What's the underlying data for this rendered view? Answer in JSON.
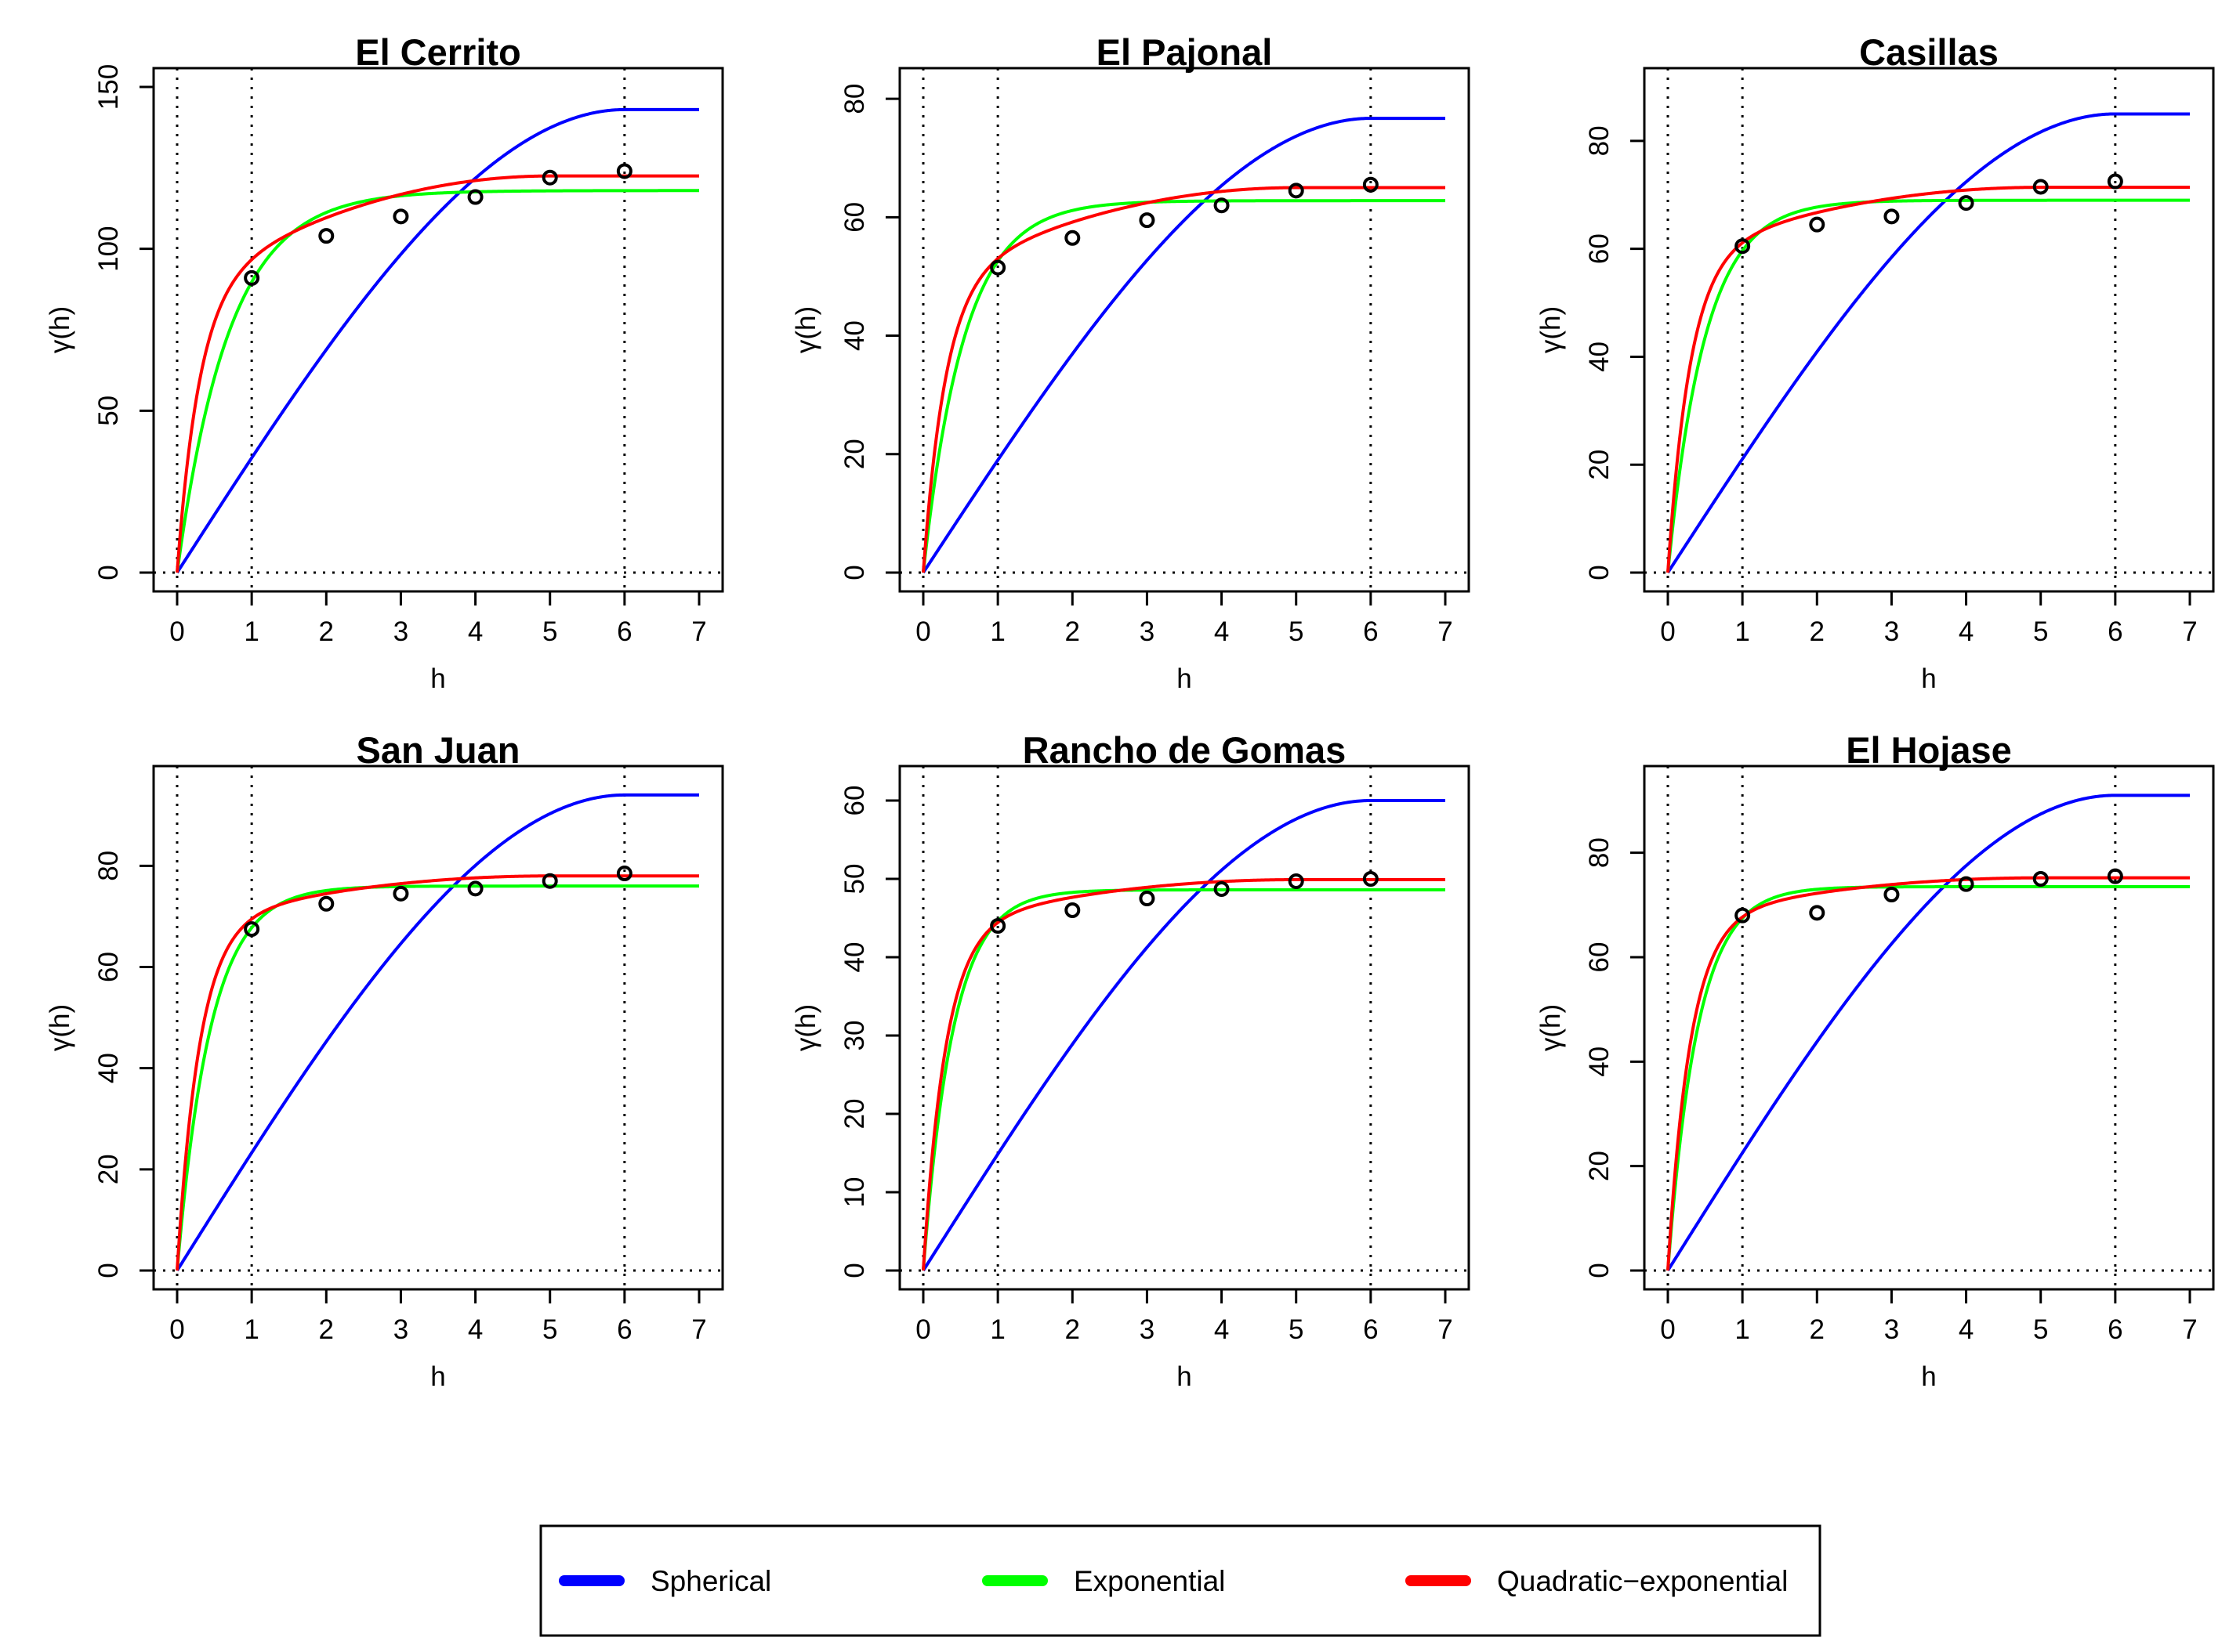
{
  "legend": {
    "entries": [
      {
        "label": "Spherical",
        "color": "#0000ff"
      },
      {
        "label": "Exponential",
        "color": "#00ff00"
      },
      {
        "label": "Quadratic−exponential",
        "color": "#ff0000"
      }
    ]
  },
  "chart_data": [
    {
      "type": "line",
      "title": "El Cerrito",
      "xlabel": "h",
      "ylabel": "γ(h)",
      "xlim": [
        0,
        7
      ],
      "ylim": [
        0,
        150
      ],
      "xticks": [
        0,
        1,
        2,
        3,
        4,
        5,
        6,
        7
      ],
      "yticks": [
        0,
        50,
        100,
        150
      ],
      "reference_lines": {
        "vertical": [
          0,
          1,
          6
        ],
        "horizontal": [
          0
        ]
      },
      "points": {
        "x": [
          1,
          2,
          3,
          4,
          5,
          6
        ],
        "y": [
          91,
          104,
          110,
          116,
          122,
          124
        ]
      },
      "series": [
        {
          "name": "Spherical",
          "model": "spherical",
          "range": 6,
          "sill": 143,
          "color": "#0000ff"
        },
        {
          "name": "Exponential",
          "model": "exponential",
          "sill": 118,
          "scale": 0.7,
          "color": "#00ff00"
        },
        {
          "name": "Quadratic−exponential",
          "model": "quadratic_exponential",
          "c1": 87,
          "a1": 0.3,
          "c2": 35.5,
          "a2": 5,
          "color": "#ff0000"
        }
      ]
    },
    {
      "type": "line",
      "title": "El Pajonal",
      "xlabel": "h",
      "ylabel": "γ(h)",
      "xlim": [
        0,
        7
      ],
      "ylim": [
        0,
        82
      ],
      "xticks": [
        0,
        1,
        2,
        3,
        4,
        5,
        6,
        7
      ],
      "yticks": [
        0,
        20,
        40,
        60,
        80
      ],
      "reference_lines": {
        "vertical": [
          0,
          1,
          6
        ],
        "horizontal": [
          0
        ]
      },
      "points": {
        "x": [
          1,
          2,
          3,
          4,
          5,
          6
        ],
        "y": [
          51.5,
          56.5,
          59.5,
          62,
          64.5,
          65.5
        ]
      },
      "series": [
        {
          "name": "Spherical",
          "model": "spherical",
          "range": 6,
          "sill": 76.7,
          "color": "#0000ff"
        },
        {
          "name": "Exponential",
          "model": "exponential",
          "sill": 62.8,
          "scale": 0.55,
          "color": "#00ff00"
        },
        {
          "name": "Quadratic−exponential",
          "model": "quadratic_exponential",
          "c1": 49,
          "a1": 0.3,
          "c2": 16,
          "a2": 5,
          "color": "#ff0000"
        }
      ]
    },
    {
      "type": "line",
      "title": "Casillas",
      "xlabel": "h",
      "ylabel": "γ(h)",
      "xlim": [
        0,
        7
      ],
      "ylim": [
        0,
        90
      ],
      "xticks": [
        0,
        1,
        2,
        3,
        4,
        5,
        6,
        7
      ],
      "yticks": [
        0,
        20,
        40,
        60,
        80
      ],
      "reference_lines": {
        "vertical": [
          0,
          1,
          6
        ],
        "horizontal": [
          0
        ]
      },
      "points": {
        "x": [
          1,
          2,
          3,
          4,
          5,
          6
        ],
        "y": [
          60.5,
          64.5,
          66,
          68.5,
          71.5,
          72.5
        ]
      },
      "series": [
        {
          "name": "Spherical",
          "model": "spherical",
          "range": 6,
          "sill": 85,
          "color": "#0000ff"
        },
        {
          "name": "Exponential",
          "model": "exponential",
          "sill": 69,
          "scale": 0.5,
          "color": "#00ff00"
        },
        {
          "name": "Quadratic−exponential",
          "model": "quadratic_exponential",
          "c1": 58.6,
          "a1": 0.3,
          "c2": 12.8,
          "a2": 5,
          "color": "#ff0000"
        }
      ]
    },
    {
      "type": "line",
      "title": "San Juan",
      "xlabel": "h",
      "ylabel": "γ(h)",
      "xlim": [
        0,
        7
      ],
      "ylim": [
        0,
        96
      ],
      "xticks": [
        0,
        1,
        2,
        3,
        4,
        5,
        6,
        7
      ],
      "yticks": [
        0,
        20,
        40,
        60,
        80
      ],
      "reference_lines": {
        "vertical": [
          0,
          1,
          6
        ],
        "horizontal": [
          0
        ]
      },
      "points": {
        "x": [
          1,
          2,
          3,
          4,
          5,
          6
        ],
        "y": [
          67.5,
          72.5,
          74.5,
          75.5,
          77,
          78.5
        ]
      },
      "series": [
        {
          "name": "Spherical",
          "model": "spherical",
          "range": 6,
          "sill": 94,
          "color": "#0000ff"
        },
        {
          "name": "Exponential",
          "model": "exponential",
          "sill": 76,
          "scale": 0.45,
          "color": "#00ff00"
        },
        {
          "name": "Quadratic−exponential",
          "model": "quadratic_exponential",
          "c1": 68.5,
          "a1": 0.3,
          "c2": 9.5,
          "a2": 5,
          "color": "#ff0000"
        }
      ]
    },
    {
      "type": "line",
      "title": "Rancho de Gomas",
      "xlabel": "h",
      "ylabel": "γ(h)",
      "xlim": [
        0,
        7
      ],
      "ylim": [
        0,
        62
      ],
      "xticks": [
        0,
        1,
        2,
        3,
        4,
        5,
        6,
        7
      ],
      "yticks": [
        0,
        10,
        20,
        30,
        40,
        50,
        60
      ],
      "reference_lines": {
        "vertical": [
          0,
          1,
          6
        ],
        "horizontal": [
          0
        ]
      },
      "points": {
        "x": [
          1,
          2,
          3,
          4,
          5,
          6
        ],
        "y": [
          44,
          46,
          47.5,
          48.7,
          49.7,
          50
        ]
      },
      "series": [
        {
          "name": "Spherical",
          "model": "spherical",
          "range": 6,
          "sill": 60,
          "color": "#0000ff"
        },
        {
          "name": "Exponential",
          "model": "exponential",
          "sill": 48.6,
          "scale": 0.4,
          "color": "#00ff00"
        },
        {
          "name": "Quadratic−exponential",
          "model": "quadratic_exponential",
          "c1": 43.8,
          "a1": 0.3,
          "c2": 6.1,
          "a2": 5,
          "color": "#ff0000"
        }
      ]
    },
    {
      "type": "line",
      "title": "El Hojase",
      "xlabel": "h",
      "ylabel": "γ(h)",
      "xlim": [
        0,
        7
      ],
      "ylim": [
        0,
        93
      ],
      "xticks": [
        0,
        1,
        2,
        3,
        4,
        5,
        6,
        7
      ],
      "yticks": [
        0,
        20,
        40,
        60,
        80
      ],
      "reference_lines": {
        "vertical": [
          0,
          1,
          6
        ],
        "horizontal": [
          0
        ]
      },
      "points": {
        "x": [
          1,
          2,
          3,
          4,
          5,
          6
        ],
        "y": [
          68,
          68.5,
          72,
          74,
          75,
          75.5
        ]
      },
      "series": [
        {
          "name": "Spherical",
          "model": "spherical",
          "range": 6,
          "sill": 91,
          "color": "#0000ff"
        },
        {
          "name": "Exponential",
          "model": "exponential",
          "sill": 73.5,
          "scale": 0.4,
          "color": "#00ff00"
        },
        {
          "name": "Quadratic−exponential",
          "model": "quadratic_exponential",
          "c1": 67.2,
          "a1": 0.3,
          "c2": 8,
          "a2": 5,
          "color": "#ff0000"
        }
      ]
    }
  ]
}
